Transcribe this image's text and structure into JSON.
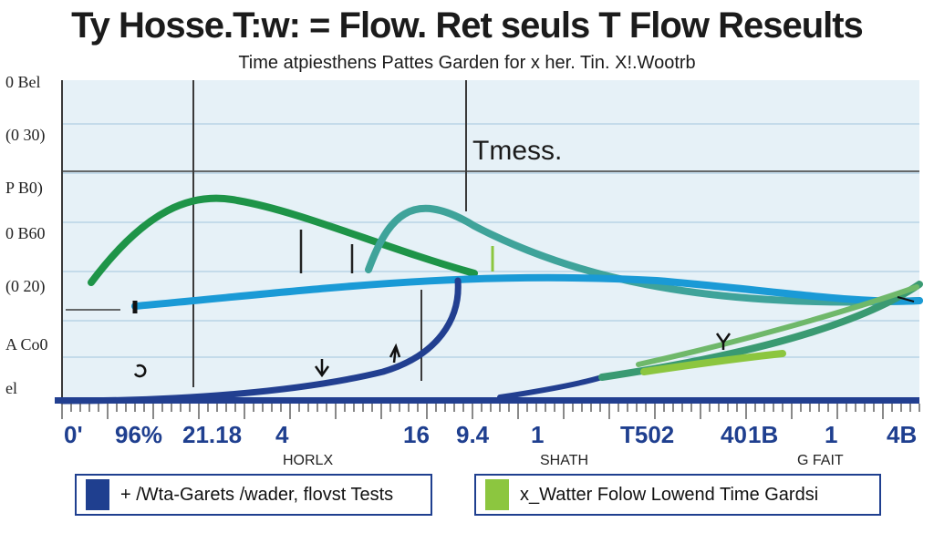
{
  "title": "Ty Hosse.T:w: = Flow. Ret seuls T Flow Reseults",
  "subtitle": "Time atpiesthens Pattes Garden for x her.  Tin.  X!.Wootrb",
  "chart_data": {
    "type": "line",
    "annotation": "Tmess.",
    "ylabels": [
      "0 Bel",
      "(0 30)",
      "P B0)",
      "0 B60",
      "(0 20)",
      "A Co0",
      "el"
    ],
    "xticks": [
      "0'",
      "96%",
      "21.18",
      "4",
      "16",
      "9.4",
      "1",
      "T502",
      "40",
      "1B",
      "1",
      "4B"
    ],
    "xsublabels": [
      "HORLX",
      "SHATH",
      "G FAIT"
    ],
    "series": [
      {
        "name": "+ /Wta-Garets /wader, flovst Tests",
        "color": "#1f3f8f"
      },
      {
        "name": "x_Watter Folow Lowend Time Gardsi",
        "color": "#8cc63f"
      }
    ]
  },
  "legend": [
    {
      "label": "+ /Wta-Garets /wader, flovst Tests",
      "color": "#1f3f8f"
    },
    {
      "label": "x_Watter Folow Lowend Time Gardsi",
      "color": "#8cc63f"
    }
  ]
}
